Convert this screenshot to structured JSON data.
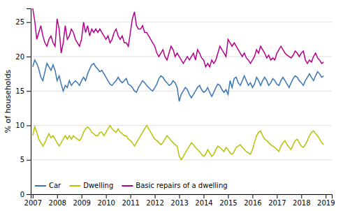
{
  "chart_data": {
    "type": "line",
    "y_label": "% of households",
    "x": [
      2007,
      2007.0833333333,
      2007.1666666667,
      2007.25,
      2007.3333333333,
      2007.4166666667,
      2007.5,
      2007.5833333333,
      2007.6666666667,
      2007.75,
      2007.8333333333,
      2007.9166666667,
      2008,
      2008.0833333333,
      2008.1666666667,
      2008.25,
      2008.3333333333,
      2008.4166666667,
      2008.5,
      2008.5833333333,
      2008.6666666667,
      2008.75,
      2008.8333333333,
      2008.9166666667,
      2009,
      2009.0833333333,
      2009.1666666667,
      2009.25,
      2009.3333333333,
      2009.4166666667,
      2009.5,
      2009.5833333333,
      2009.6666666667,
      2009.75,
      2009.8333333333,
      2009.9166666667,
      2010,
      2010.0833333333,
      2010.1666666667,
      2010.25,
      2010.3333333333,
      2010.4166666667,
      2010.5,
      2010.5833333333,
      2010.6666666667,
      2010.75,
      2010.8333333333,
      2010.9166666667,
      2011,
      2011.0833333333,
      2011.1666666667,
      2011.25,
      2011.3333333333,
      2011.4166666667,
      2011.5,
      2011.5833333333,
      2011.6666666667,
      2011.75,
      2011.8333333333,
      2011.9166666667,
      2012,
      2012.0833333333,
      2012.1666666667,
      2012.25,
      2012.3333333333,
      2012.4166666667,
      2012.5,
      2012.5833333333,
      2012.6666666667,
      2012.75,
      2012.8333333333,
      2012.9166666667,
      2013,
      2013.0833333333,
      2013.1666666667,
      2013.25,
      2013.3333333333,
      2013.4166666667,
      2013.5,
      2013.5833333333,
      2013.6666666667,
      2013.75,
      2013.8333333333,
      2013.9166666667,
      2014,
      2014.0833333333,
      2014.1666666667,
      2014.25,
      2014.3333333333,
      2014.4166666667,
      2014.5,
      2014.5833333333,
      2014.6666666667,
      2014.75,
      2014.8333333333,
      2014.9166666667,
      2015,
      2015.0833333333,
      2015.1666666667,
      2015.25,
      2015.3333333333,
      2015.4166666667,
      2015.5,
      2015.5833333333,
      2015.6666666667,
      2015.75,
      2015.8333333333,
      2015.9166666667,
      2016,
      2016.0833333333,
      2016.1666666667,
      2016.25,
      2016.3333333333,
      2016.4166666667,
      2016.5,
      2016.5833333333,
      2016.6666666667,
      2016.75,
      2016.8333333333,
      2016.9166666667,
      2017,
      2017.0833333333,
      2017.1666666667,
      2017.25,
      2017.3333333333,
      2017.4166666667,
      2017.5,
      2017.5833333333,
      2017.6666666667,
      2017.75,
      2017.8333333333,
      2017.9166666667,
      2018,
      2018.0833333333,
      2018.1666666667,
      2018.25,
      2018.3333333333,
      2018.4166666667,
      2018.5,
      2018.5833333333,
      2018.6666666667,
      2018.75,
      2018.8333333333,
      2018.9166666667
    ],
    "xlim": [
      2006.92,
      2019.25
    ],
    "xticks": [
      2007,
      2008,
      2009,
      2010,
      2011,
      2012,
      2013,
      2014,
      2015,
      2016,
      2017,
      2018,
      2019
    ],
    "ylim": [
      0,
      27
    ],
    "yticks": [
      0,
      5,
      10,
      15,
      20,
      25
    ],
    "grid": true,
    "legend": "lower left",
    "series": [
      {
        "name": "Car",
        "color": "#3976b5",
        "values": [
          18.5,
          19.5,
          19.0,
          18.2,
          17.0,
          16.5,
          17.8,
          19.0,
          18.5,
          18.0,
          18.8,
          18.0,
          16.5,
          17.2,
          16.0,
          15.0,
          15.8,
          15.5,
          16.5,
          15.8,
          16.2,
          16.5,
          16.2,
          15.8,
          16.5,
          17.0,
          16.5,
          17.5,
          18.2,
          18.8,
          19.0,
          18.5,
          18.2,
          17.8,
          18.0,
          17.5,
          17.0,
          16.5,
          16.0,
          15.8,
          16.2,
          16.5,
          17.0,
          16.5,
          16.2,
          16.5,
          16.8,
          16.0,
          15.8,
          15.5,
          15.0,
          14.8,
          15.5,
          16.0,
          16.5,
          16.2,
          15.8,
          15.5,
          15.2,
          15.0,
          15.5,
          16.0,
          16.8,
          17.2,
          17.0,
          16.5,
          16.2,
          15.8,
          16.0,
          16.5,
          16.2,
          15.5,
          13.5,
          14.5,
          15.0,
          15.5,
          15.2,
          14.5,
          14.0,
          14.5,
          15.0,
          15.5,
          15.8,
          15.2,
          14.8,
          15.0,
          15.5,
          14.8,
          14.2,
          14.8,
          15.5,
          16.0,
          15.8,
          15.2,
          14.8,
          15.2,
          14.5,
          16.5,
          15.5,
          16.8,
          17.0,
          16.2,
          15.8,
          16.5,
          17.2,
          16.5,
          15.8,
          16.2,
          15.5,
          16.0,
          17.0,
          16.5,
          15.8,
          16.5,
          17.0,
          16.5,
          15.8,
          16.2,
          16.8,
          16.5,
          16.0,
          15.8,
          16.5,
          17.0,
          16.5,
          16.0,
          15.5,
          16.2,
          16.8,
          17.2,
          17.0,
          16.5,
          16.2,
          15.8,
          16.5,
          17.0,
          17.5,
          17.0,
          16.5,
          17.2,
          17.8,
          17.5,
          17.0,
          17.2
        ]
      },
      {
        "name": "Dwelling",
        "color": "#b5c400",
        "values": [
          8.5,
          9.8,
          9.0,
          8.0,
          7.5,
          7.0,
          7.5,
          8.2,
          8.8,
          8.2,
          8.5,
          8.0,
          7.5,
          7.0,
          7.5,
          8.0,
          8.5,
          8.0,
          8.5,
          8.0,
          8.5,
          8.2,
          8.0,
          7.8,
          8.2,
          9.0,
          9.5,
          9.8,
          9.5,
          9.0,
          8.8,
          8.5,
          8.5,
          9.0,
          9.0,
          8.5,
          9.0,
          9.5,
          10.0,
          9.5,
          9.2,
          9.0,
          9.5,
          9.0,
          8.8,
          8.5,
          8.5,
          8.0,
          7.8,
          7.5,
          7.0,
          7.5,
          8.0,
          8.5,
          9.0,
          9.5,
          10.0,
          9.5,
          9.0,
          8.5,
          8.0,
          7.8,
          7.5,
          7.2,
          7.5,
          8.0,
          8.5,
          8.2,
          7.8,
          7.5,
          7.2,
          7.0,
          5.5,
          5.0,
          5.5,
          6.0,
          6.5,
          7.0,
          7.5,
          7.2,
          6.8,
          6.5,
          6.2,
          5.8,
          5.5,
          5.8,
          6.5,
          6.0,
          5.5,
          5.8,
          6.5,
          7.0,
          6.8,
          6.5,
          6.2,
          6.8,
          6.5,
          6.0,
          5.8,
          6.2,
          6.8,
          7.0,
          7.2,
          6.8,
          6.5,
          6.2,
          6.0,
          5.8,
          6.5,
          7.5,
          8.5,
          9.0,
          9.2,
          8.5,
          8.0,
          7.8,
          7.5,
          7.2,
          7.0,
          6.8,
          6.5,
          6.2,
          7.0,
          7.5,
          7.8,
          7.2,
          6.8,
          6.5,
          7.2,
          7.8,
          8.0,
          7.5,
          7.0,
          6.8,
          7.2,
          7.8,
          8.5,
          9.0,
          9.2,
          8.8,
          8.5,
          8.0,
          7.5,
          7.2
        ]
      },
      {
        "name": "Basic repairs of a dwelling",
        "color": "#b5008b",
        "values": [
          27.0,
          25.2,
          22.5,
          23.5,
          24.5,
          23.0,
          22.0,
          21.5,
          22.5,
          23.0,
          22.0,
          21.5,
          25.5,
          24.0,
          20.5,
          22.0,
          24.5,
          22.5,
          23.0,
          24.0,
          23.5,
          22.5,
          22.0,
          21.5,
          22.5,
          25.0,
          23.5,
          24.5,
          23.0,
          24.0,
          23.5,
          24.0,
          23.5,
          24.0,
          23.5,
          23.0,
          22.5,
          23.0,
          22.0,
          22.5,
          23.5,
          24.0,
          23.0,
          22.5,
          23.0,
          22.0,
          22.0,
          21.5,
          23.5,
          25.5,
          26.5,
          24.5,
          24.0,
          24.0,
          24.5,
          23.5,
          23.5,
          23.0,
          22.5,
          22.0,
          21.5,
          20.5,
          20.0,
          20.5,
          21.0,
          20.0,
          19.5,
          20.5,
          21.5,
          21.0,
          20.0,
          20.5,
          20.0,
          19.5,
          19.0,
          19.5,
          20.0,
          19.5,
          20.0,
          20.5,
          19.5,
          21.0,
          20.5,
          19.8,
          19.5,
          18.5,
          19.0,
          18.5,
          19.5,
          19.0,
          19.5,
          20.5,
          21.5,
          21.0,
          20.5,
          20.0,
          22.5,
          22.0,
          21.5,
          22.0,
          21.5,
          21.0,
          20.5,
          20.0,
          20.5,
          19.8,
          19.5,
          19.0,
          19.5,
          20.0,
          21.0,
          20.5,
          21.5,
          21.0,
          20.5,
          19.8,
          20.2,
          19.5,
          19.8,
          19.5,
          20.5,
          21.0,
          21.5,
          21.0,
          20.5,
          20.2,
          20.0,
          19.8,
          20.2,
          20.8,
          20.5,
          20.0,
          20.5,
          20.8,
          19.5,
          19.0,
          19.5,
          19.2,
          20.0,
          20.5,
          19.8,
          19.5,
          19.0,
          19.2
        ]
      }
    ]
  }
}
